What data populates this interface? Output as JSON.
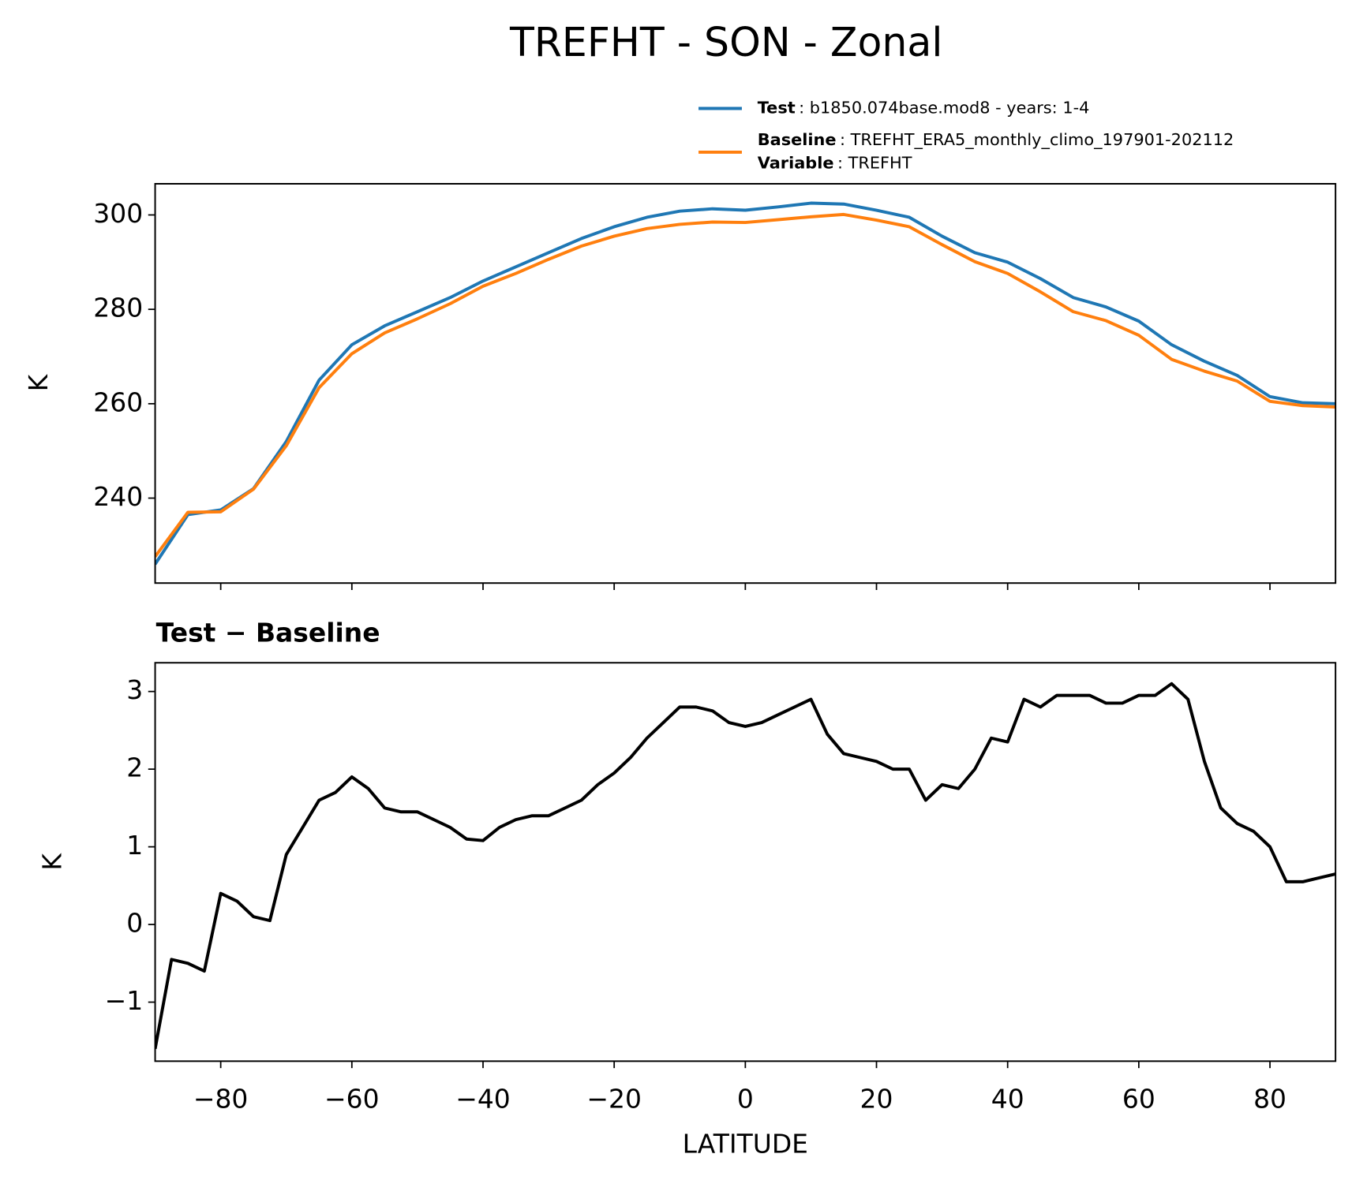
{
  "chart_data": [
    {
      "type": "line",
      "title": "TREFHT - SON - Zonal",
      "ylabel": "K",
      "x": [
        -90,
        -85,
        -80,
        -75,
        -70,
        -65,
        -60,
        -55,
        -50,
        -45,
        -40,
        -35,
        -30,
        -25,
        -20,
        -15,
        -10,
        -5,
        0,
        5,
        10,
        15,
        20,
        25,
        30,
        35,
        40,
        45,
        50,
        55,
        60,
        65,
        70,
        75,
        80,
        85,
        90
      ],
      "series": [
        {
          "name": "Test",
          "detail": ": b1850.074base.mod8 - years: 1-4",
          "color": "#1f77b4",
          "values": [
            226,
            236.5,
            237.5,
            242,
            252,
            265,
            272.5,
            276.5,
            279.5,
            282.5,
            286,
            289,
            292,
            295,
            297.5,
            299.5,
            300.8,
            301.3,
            301,
            301.7,
            302.5,
            302.3,
            301,
            299.5,
            295.5,
            292,
            290,
            286.5,
            282.5,
            280.5,
            277.5,
            272.5,
            269,
            266,
            261.5,
            260.2,
            260
          ]
        },
        {
          "name": "Baseline",
          "detail": ": TREFHT_ERA5_monthly_climo_197901-202112",
          "extra_name": "Variable",
          "extra_detail": ": TREFHT",
          "color": "#ff7f0e",
          "values": [
            227.6,
            237,
            237.1,
            241.9,
            251.1,
            263.4,
            270.6,
            275,
            278,
            281.2,
            284.9,
            287.6,
            290.6,
            293.4,
            295.5,
            297.1,
            298,
            298.5,
            298.4,
            299,
            299.6,
            300.1,
            298.9,
            297.5,
            293.7,
            290.1,
            287.6,
            283.7,
            279.5,
            277.6,
            274.5,
            269.4,
            266.9,
            264.8,
            260.5,
            259.6,
            259.3
          ]
        }
      ],
      "xlim": [
        -90,
        90
      ],
      "ylim": [
        222,
        306.6
      ],
      "yticks": [
        240,
        260,
        280,
        300
      ]
    },
    {
      "type": "line",
      "title": "Test − Baseline",
      "ylabel": "K",
      "xlabel": "LATITUDE",
      "color": "#000000",
      "x": [
        -90,
        -87.5,
        -85,
        -82.5,
        -80,
        -77.5,
        -75,
        -72.5,
        -70,
        -67.5,
        -65,
        -62.5,
        -60,
        -57.5,
        -55,
        -52.5,
        -50,
        -47.5,
        -45,
        -42.5,
        -40,
        -37.5,
        -35,
        -32.5,
        -30,
        -27.5,
        -25,
        -22.5,
        -20,
        -17.5,
        -15,
        -12.5,
        -10,
        -7.5,
        -5,
        -2.5,
        0,
        2.5,
        5,
        7.5,
        10,
        12.5,
        15,
        17.5,
        20,
        22.5,
        25,
        27.5,
        30,
        32.5,
        35,
        37.5,
        40,
        42.5,
        45,
        47.5,
        50,
        52.5,
        55,
        57.5,
        60,
        62.5,
        65,
        67.5,
        70,
        72.5,
        75,
        77.5,
        80,
        82.5,
        85,
        87.5,
        90
      ],
      "values": [
        -1.6,
        -0.45,
        -0.5,
        -0.6,
        0.4,
        0.3,
        0.1,
        0.05,
        0.9,
        1.25,
        1.6,
        1.7,
        1.9,
        1.75,
        1.5,
        1.45,
        1.45,
        1.35,
        1.25,
        1.1,
        1.08,
        1.25,
        1.35,
        1.4,
        1.4,
        1.5,
        1.6,
        1.8,
        1.95,
        2.15,
        2.4,
        2.6,
        2.8,
        2.8,
        2.75,
        2.6,
        2.55,
        2.6,
        2.7,
        2.8,
        2.9,
        2.45,
        2.2,
        2.15,
        2.1,
        2.0,
        2.0,
        1.6,
        1.8,
        1.75,
        2.0,
        2.4,
        2.35,
        2.9,
        2.8,
        2.95,
        2.95,
        2.95,
        2.85,
        2.85,
        2.95,
        2.95,
        3.1,
        2.9,
        2.1,
        1.5,
        1.3,
        1.2,
        1.0,
        0.55,
        0.55,
        0.6,
        0.65
      ],
      "xlim": [
        -90,
        90
      ],
      "ylim": [
        -1.76,
        3.37
      ],
      "xticks": [
        {
          "value": -80,
          "label": "−80"
        },
        {
          "value": -60,
          "label": "−60"
        },
        {
          "value": -40,
          "label": "−40"
        },
        {
          "value": -20,
          "label": "−20"
        },
        0,
        20,
        40,
        60,
        80
      ],
      "yticks": [
        {
          "value": -1,
          "label": "−1"
        },
        0,
        1,
        2,
        3
      ]
    }
  ]
}
